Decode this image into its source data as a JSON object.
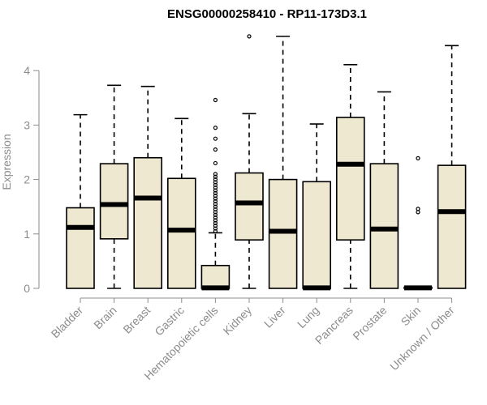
{
  "chart_data": {
    "type": "boxplot",
    "title": "ENSG00000258410 - RP11-173D3.1",
    "xlabel": "",
    "ylabel": "Expression",
    "ylim": [
      0,
      4.7
    ],
    "yticks": [
      0,
      1,
      2,
      3,
      4
    ],
    "grid": false,
    "box_color": "#efe8d0",
    "categories": [
      "Bladder",
      "Brain",
      "Breast",
      "Gastric",
      "Hematopoietic cells",
      "Kidney",
      "Liver",
      "Lung",
      "Pancreas",
      "Prostate",
      "Skin",
      "Unknown / Other"
    ],
    "boxes": [
      {
        "min": 0,
        "q1": 0,
        "median": 1.12,
        "q3": 1.48,
        "max": 3.19,
        "outliers": []
      },
      {
        "min": 0,
        "q1": 0.91,
        "median": 1.54,
        "q3": 2.29,
        "max": 3.73,
        "outliers": []
      },
      {
        "min": 0,
        "q1": 0,
        "median": 1.66,
        "q3": 2.4,
        "max": 3.71,
        "outliers": []
      },
      {
        "min": 0,
        "q1": 0,
        "median": 1.07,
        "q3": 2.02,
        "max": 3.12,
        "outliers": []
      },
      {
        "min": 0,
        "q1": 0,
        "median": 0.01,
        "q3": 0.42,
        "max": 1.02,
        "outliers": [
          1.05,
          1.1,
          1.15,
          1.2,
          1.25,
          1.3,
          1.35,
          1.4,
          1.45,
          1.5,
          1.55,
          1.6,
          1.65,
          1.7,
          1.75,
          1.8,
          1.85,
          1.9,
          1.95,
          2.0,
          2.05,
          2.1,
          2.3,
          2.55,
          2.75,
          2.95,
          3.46
        ]
      },
      {
        "min": 0,
        "q1": 0.89,
        "median": 1.57,
        "q3": 2.12,
        "max": 3.21,
        "outliers": [
          4.63
        ]
      },
      {
        "min": 0,
        "q1": 0,
        "median": 1.05,
        "q3": 2.0,
        "max": 4.63,
        "outliers": []
      },
      {
        "min": 0,
        "q1": 0,
        "median": 0.01,
        "q3": 1.96,
        "max": 3.02,
        "outliers": []
      },
      {
        "min": 0,
        "q1": 0.89,
        "median": 2.28,
        "q3": 3.14,
        "max": 4.11,
        "outliers": []
      },
      {
        "min": 0,
        "q1": 0,
        "median": 1.09,
        "q3": 2.29,
        "max": 3.61,
        "outliers": []
      },
      {
        "min": 0,
        "q1": 0,
        "median": 0.01,
        "q3": 0.02,
        "max": 0.02,
        "outliers": [
          1.4,
          1.46,
          2.39
        ]
      },
      {
        "min": 0,
        "q1": 0,
        "median": 1.41,
        "q3": 2.26,
        "max": 4.46,
        "outliers": []
      }
    ]
  }
}
